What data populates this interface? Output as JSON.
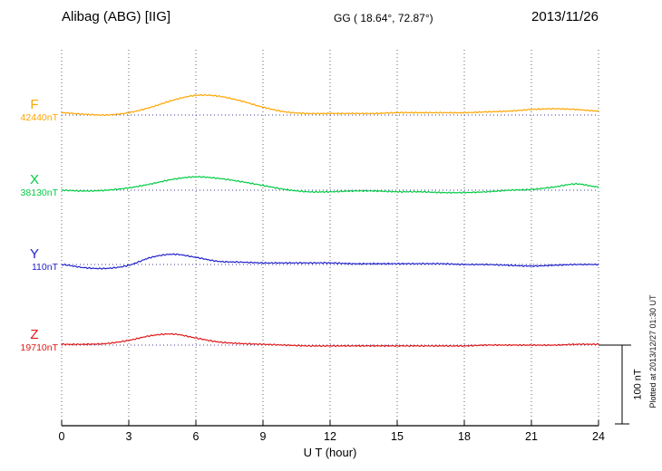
{
  "header": {
    "station": "Alibag (ABG)  [IIG]",
    "coords": "GG ( 18.64°,  72.87°)",
    "date": "2013/11/26"
  },
  "axis": {
    "xlabel": "U T (hour)",
    "tick_labels": [
      "0",
      "3",
      "6",
      "9",
      "12",
      "15",
      "18",
      "21",
      "24"
    ]
  },
  "scalebar": {
    "label": "100 nT",
    "nT": 100
  },
  "footer_note": "Plotted at 2013/12/27 01:30 UT",
  "chart_data": {
    "type": "line",
    "title": "Alibag (ABG) [IIG] magnetogram 2013/11/26",
    "xlabel": "U T (hour)",
    "x_range": [
      0,
      24
    ],
    "x_ticks": [
      0,
      3,
      6,
      9,
      12,
      15,
      18,
      21,
      24
    ],
    "x_hours": [
      0,
      1,
      2,
      3,
      4,
      5,
      6,
      7,
      8,
      9,
      10,
      11,
      12,
      13,
      14,
      15,
      16,
      17,
      18,
      19,
      20,
      21,
      22,
      23,
      24
    ],
    "scale_bar_nT": 100,
    "grid": "vertical-dotted",
    "series": [
      {
        "name": "F",
        "baseline_label": "42440nT",
        "baseline_nT": 42440,
        "color": "#ffa500",
        "offsets_nT": [
          3,
          1,
          0,
          3,
          10,
          19,
          25,
          24,
          18,
          10,
          4,
          2,
          2,
          2,
          2,
          3,
          3,
          3,
          3,
          4,
          5,
          7,
          8,
          7,
          5
        ]
      },
      {
        "name": "X",
        "baseline_label": "38130nT",
        "baseline_nT": 38130,
        "color": "#00cc44",
        "offsets_nT": [
          0,
          -1,
          0,
          3,
          8,
          14,
          17,
          15,
          11,
          6,
          1,
          -2,
          -2,
          -1,
          -1,
          -2,
          -2,
          -3,
          -3,
          -2,
          0,
          1,
          4,
          8,
          4
        ]
      },
      {
        "name": "Y",
        "baseline_label": "110nT",
        "baseline_nT": 110,
        "color": "#2222cc",
        "offsets_nT": [
          0,
          -4,
          -5,
          -1,
          9,
          13,
          9,
          4,
          3,
          2,
          2,
          2,
          2,
          1,
          1,
          1,
          1,
          1,
          0,
          0,
          -1,
          -2,
          -1,
          0,
          0
        ]
      },
      {
        "name": "Z",
        "baseline_label": "19710nT",
        "baseline_nT": 19710,
        "color": "#e01818",
        "offsets_nT": [
          1,
          1,
          2,
          6,
          12,
          14,
          9,
          4,
          2,
          1,
          0,
          -1,
          -1,
          -1,
          -1,
          -1,
          -1,
          -1,
          -1,
          0,
          0,
          0,
          0,
          1,
          1
        ]
      }
    ]
  }
}
